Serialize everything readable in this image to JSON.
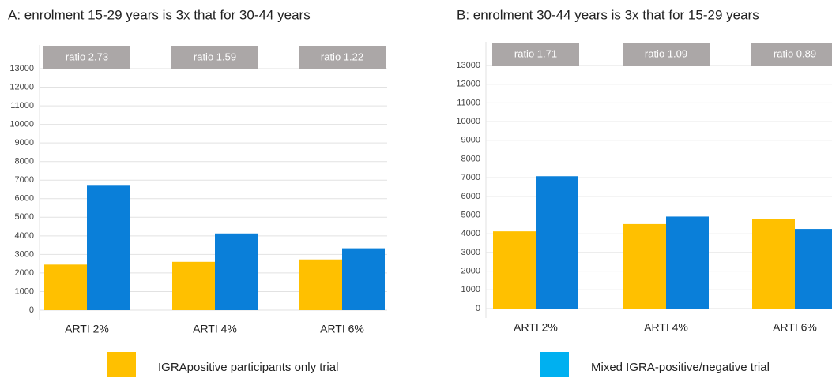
{
  "charts": [
    {
      "chart_data": {
        "type": "bar",
        "title": "A: enrolment 15-29 years is 3x that for 30-44 years",
        "categories": [
          "ARTI 2%",
          "ARTI 4%",
          "ARTI 6%"
        ],
        "series": [
          {
            "color": "#ffc000",
            "values": [
              2450,
              2600,
              2730
            ]
          },
          {
            "color": "#0a7fd9",
            "values": [
              6700,
              4130,
              3330
            ]
          }
        ],
        "annotations": [
          "ratio 2.73",
          "ratio 1.59",
          "ratio 1.22"
        ],
        "ylim": [
          0,
          13000
        ],
        "yticks": [
          0,
          1000,
          2000,
          3000,
          4000,
          5000,
          6000,
          7000,
          8000,
          9000,
          10000,
          11000,
          12000,
          13000
        ],
        "grid": true
      }
    },
    {
      "chart_data": {
        "type": "bar",
        "title": "B: enrolment 30-44 years is 3x that for 15-29 years",
        "categories": [
          "ARTI 2%",
          "ARTI 4%",
          "ARTI 6%"
        ],
        "series": [
          {
            "color": "#ffc000",
            "values": [
              4130,
              4520,
              4780
            ]
          },
          {
            "color": "#0a7fd9",
            "values": [
              7080,
              4920,
              4260
            ]
          }
        ],
        "annotations": [
          "ratio 1.71",
          "ratio 1.09",
          "ratio 0.89"
        ],
        "ylim": [
          0,
          13000
        ],
        "yticks": [
          0,
          1000,
          2000,
          3000,
          4000,
          5000,
          6000,
          7000,
          8000,
          9000,
          10000,
          11000,
          12000,
          13000
        ],
        "grid": true
      }
    }
  ],
  "legend": [
    {
      "name": "IGRApositive participants only trial",
      "color": "#ffc000"
    },
    {
      "name": "Mixed IGRA-positive/negative trial",
      "color": "#00b0f0"
    }
  ]
}
